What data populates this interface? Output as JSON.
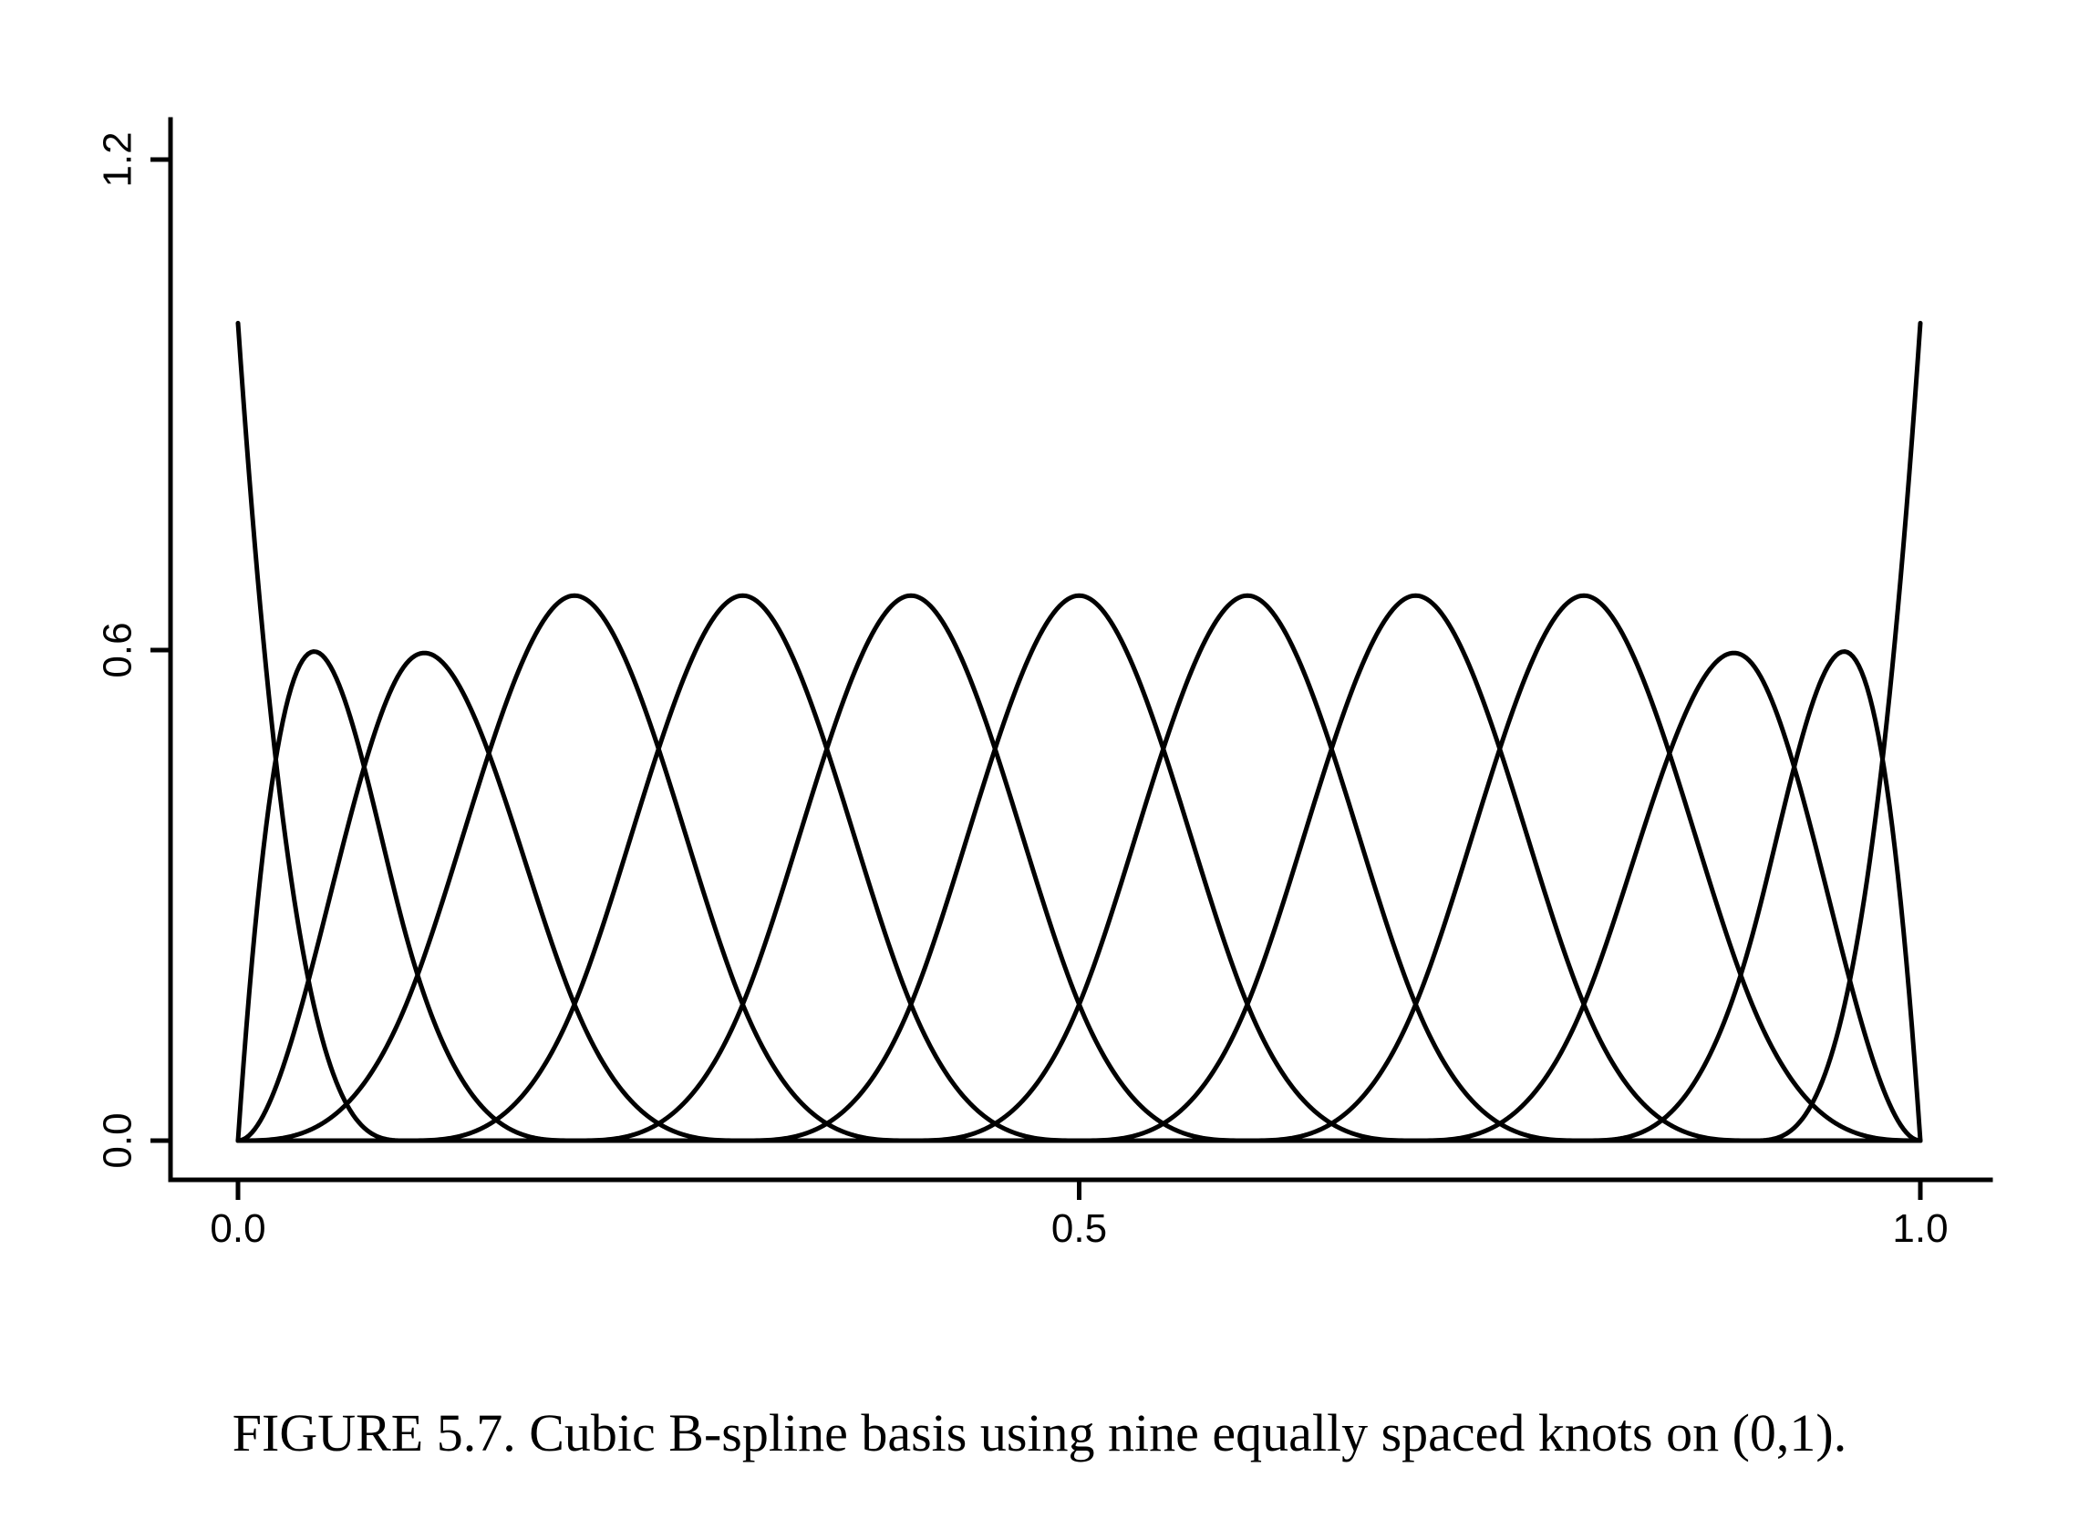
{
  "caption": "FIGURE 5.7. Cubic B-spline basis using nine equally spaced knots on (0,1).",
  "chart_data": {
    "type": "line",
    "title": "",
    "xlabel": "",
    "ylabel": "",
    "xlim": [
      0,
      1
    ],
    "ylim": [
      0,
      1.2
    ],
    "x_ticks": [
      {
        "value": 0.0,
        "label": "0.0"
      },
      {
        "value": 0.5,
        "label": "0.5"
      },
      {
        "value": 1.0,
        "label": "1.0"
      }
    ],
    "y_ticks": [
      {
        "value": 0.0,
        "label": "0.0"
      },
      {
        "value": 0.6,
        "label": "0.6"
      },
      {
        "value": 1.2,
        "label": "1.2"
      }
    ],
    "degree": 3,
    "knots": [
      0,
      0,
      0,
      0,
      0.1,
      0.2,
      0.3,
      0.4,
      0.5,
      0.6,
      0.7,
      0.8,
      0.9,
      1,
      1,
      1,
      1
    ],
    "n_basis": 13,
    "grid": false,
    "legend": "none",
    "line_color": "#000000"
  }
}
